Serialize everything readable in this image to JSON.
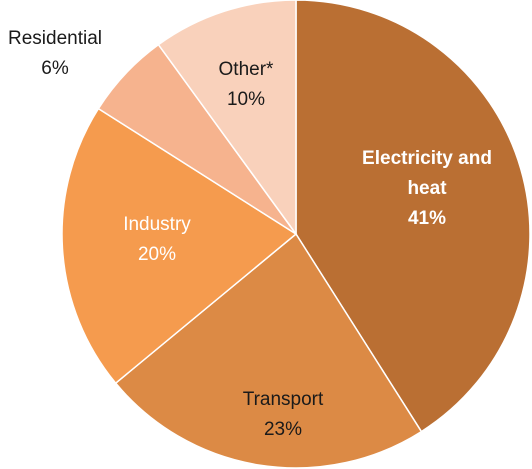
{
  "chart_data": {
    "type": "pie",
    "slices": [
      {
        "label": "Electricity and heat",
        "value": 41,
        "value_label": "41%",
        "color": "#BA6F33",
        "label_color": "#ffffff",
        "bold": true
      },
      {
        "label": "Transport",
        "value": 23,
        "value_label": "23%",
        "color": "#DC8A45",
        "label_color": "#1a1a1a",
        "bold": false
      },
      {
        "label": "Industry",
        "value": 20,
        "value_label": "20%",
        "color": "#F59B4E",
        "label_color": "#ffffff",
        "bold": false
      },
      {
        "label": "Residential",
        "value": 6,
        "value_label": "6%",
        "color": "#F6B38E",
        "label_color": "#1a1a1a",
        "bold": false
      },
      {
        "label": "Other*",
        "value": 10,
        "value_label": "10%",
        "color": "#F9D1BB",
        "label_color": "#1a1a1a",
        "bold": false
      }
    ],
    "start_angle": "12 o'clock",
    "direction": "clockwise",
    "legend": "none",
    "labels": "category and percentage on slices"
  }
}
